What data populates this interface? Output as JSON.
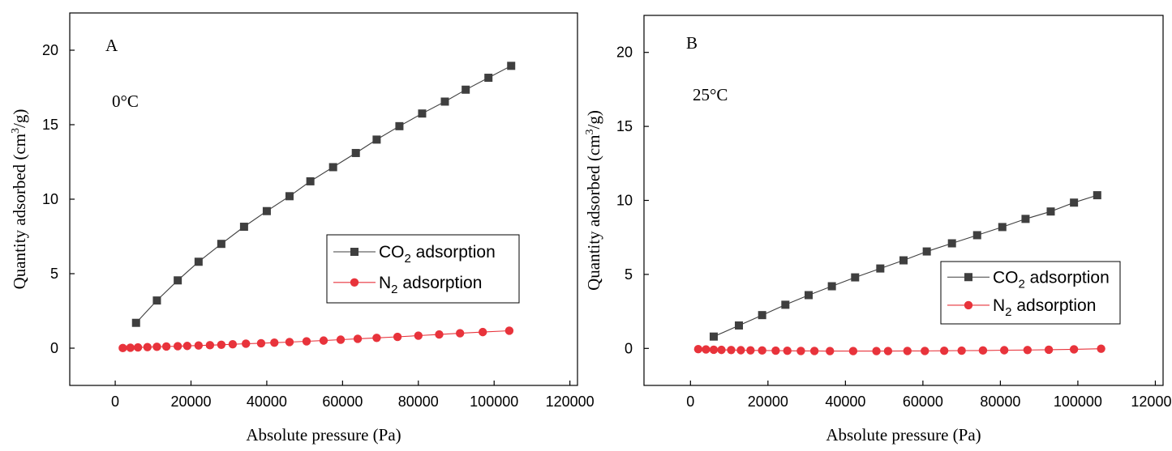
{
  "chart_data": [
    {
      "type": "line",
      "panel_label": "A",
      "temperature_label": "0°C",
      "xlabel": "Absolute pressure (Pa)",
      "ylabel_main": "Quantity adsorbed (cm",
      "ylabel_sup": "3",
      "ylabel_tail": "/g)",
      "xlim": [
        -12000,
        122000
      ],
      "ylim": [
        -2.5,
        22.5
      ],
      "xticks": [
        0,
        20000,
        40000,
        60000,
        80000,
        100000,
        120000
      ],
      "yticks": [
        0,
        5,
        10,
        15,
        20
      ],
      "legend_position": "center-right",
      "series": [
        {
          "name_main": "CO",
          "name_sub": "2",
          "name_tail": " adsorption",
          "marker": "square",
          "color": "#3f3f3f",
          "x": [
            5500,
            11000,
            16500,
            22000,
            28000,
            34000,
            40000,
            46000,
            51500,
            57500,
            63500,
            69000,
            75000,
            81000,
            87000,
            92500,
            98500,
            104500
          ],
          "y": [
            1.7,
            3.2,
            4.55,
            5.8,
            7.0,
            8.15,
            9.2,
            10.2,
            11.2,
            12.15,
            13.1,
            14.0,
            14.9,
            15.75,
            16.55,
            17.35,
            18.15,
            18.95
          ]
        },
        {
          "name_main": "N",
          "name_sub": "2",
          "name_tail": " adsorption",
          "marker": "circle",
          "color": "#e8333b",
          "x": [
            2000,
            4000,
            6000,
            8500,
            11000,
            13500,
            16500,
            19000,
            22000,
            25000,
            28000,
            31000,
            34500,
            38500,
            42000,
            46000,
            50500,
            55000,
            59500,
            64000,
            69000,
            74500,
            80000,
            85500,
            91000,
            97000,
            104000
          ],
          "y": [
            0.01,
            0.03,
            0.05,
            0.07,
            0.09,
            0.11,
            0.13,
            0.15,
            0.18,
            0.2,
            0.23,
            0.26,
            0.3,
            0.33,
            0.37,
            0.41,
            0.46,
            0.51,
            0.57,
            0.63,
            0.69,
            0.76,
            0.84,
            0.92,
            1.0,
            1.08,
            1.17
          ]
        }
      ]
    },
    {
      "type": "line",
      "panel_label": "B",
      "temperature_label": "25°C",
      "xlabel": "Absolute pressure (Pa)",
      "ylabel_main": "Quantity adsorbed (cm",
      "ylabel_sup": "3",
      "ylabel_tail": "/g)",
      "xlim": [
        -12000,
        122000
      ],
      "ylim": [
        -2.5,
        22.5
      ],
      "xticks": [
        0,
        20000,
        40000,
        60000,
        80000,
        100000,
        120000
      ],
      "yticks": [
        0,
        5,
        10,
        15,
        20
      ],
      "legend_position": "center-right",
      "series": [
        {
          "name_main": "CO",
          "name_sub": "2",
          "name_tail": " adsorption",
          "marker": "square",
          "color": "#3f3f3f",
          "x": [
            6000,
            12500,
            18500,
            24500,
            30500,
            36500,
            42500,
            49000,
            55000,
            61000,
            67500,
            74000,
            80500,
            86500,
            93000,
            99000,
            105000
          ],
          "y": [
            0.8,
            1.55,
            2.25,
            2.95,
            3.6,
            4.2,
            4.8,
            5.4,
            5.95,
            6.55,
            7.1,
            7.65,
            8.2,
            8.75,
            9.25,
            9.85,
            10.35
          ]
        },
        {
          "name_main": "N",
          "name_sub": "2",
          "name_tail": " adsorption",
          "marker": "circle",
          "color": "#e8333b",
          "x": [
            2000,
            4000,
            6000,
            8000,
            10500,
            13000,
            15500,
            18500,
            22000,
            25000,
            28500,
            32000,
            36000,
            42000,
            48000,
            51000,
            56000,
            60500,
            65500,
            70000,
            75500,
            81000,
            87000,
            92500,
            99000,
            106000
          ],
          "y": [
            -0.05,
            -0.07,
            -0.09,
            -0.1,
            -0.11,
            -0.12,
            -0.13,
            -0.14,
            -0.15,
            -0.16,
            -0.17,
            -0.17,
            -0.18,
            -0.18,
            -0.18,
            -0.18,
            -0.17,
            -0.17,
            -0.16,
            -0.15,
            -0.14,
            -0.12,
            -0.11,
            -0.09,
            -0.06,
            -0.02
          ]
        }
      ]
    }
  ]
}
